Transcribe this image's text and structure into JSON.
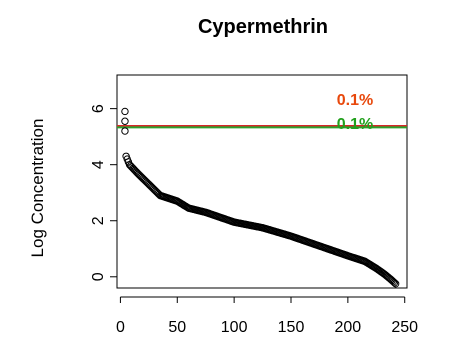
{
  "chart_data": {
    "type": "scatter",
    "title": "Cypermethrin",
    "xlabel": "",
    "ylabel": "Log Concentration",
    "xlim": [
      -3,
      252
    ],
    "ylim": [
      -0.4,
      7.2
    ],
    "xticks": [
      0,
      50,
      100,
      150,
      200,
      250
    ],
    "yticks": [
      0,
      2,
      4,
      6
    ],
    "grid": false,
    "legend": "none",
    "threshold_lines": [
      {
        "label": "0.1%",
        "y": 5.38,
        "color": "#d62728"
      },
      {
        "label": "0.1%",
        "y": 5.33,
        "color": "#2ca02c"
      }
    ],
    "annotation_colors": [
      "#e8480c",
      "#22a01c"
    ],
    "outlier_points": {
      "x": [
        4,
        4,
        4
      ],
      "y": [
        5.9,
        5.55,
        5.2
      ]
    },
    "curve_anchors": {
      "x": [
        5,
        8,
        15,
        25,
        35,
        50,
        60,
        75,
        100,
        125,
        150,
        175,
        200,
        215,
        225,
        232,
        238,
        242
      ],
      "y": [
        4.3,
        4.0,
        3.7,
        3.3,
        2.9,
        2.7,
        2.45,
        2.3,
        1.95,
        1.75,
        1.45,
        1.1,
        0.75,
        0.55,
        0.3,
        0.1,
        -0.1,
        -0.25
      ]
    },
    "n_points": 238
  }
}
